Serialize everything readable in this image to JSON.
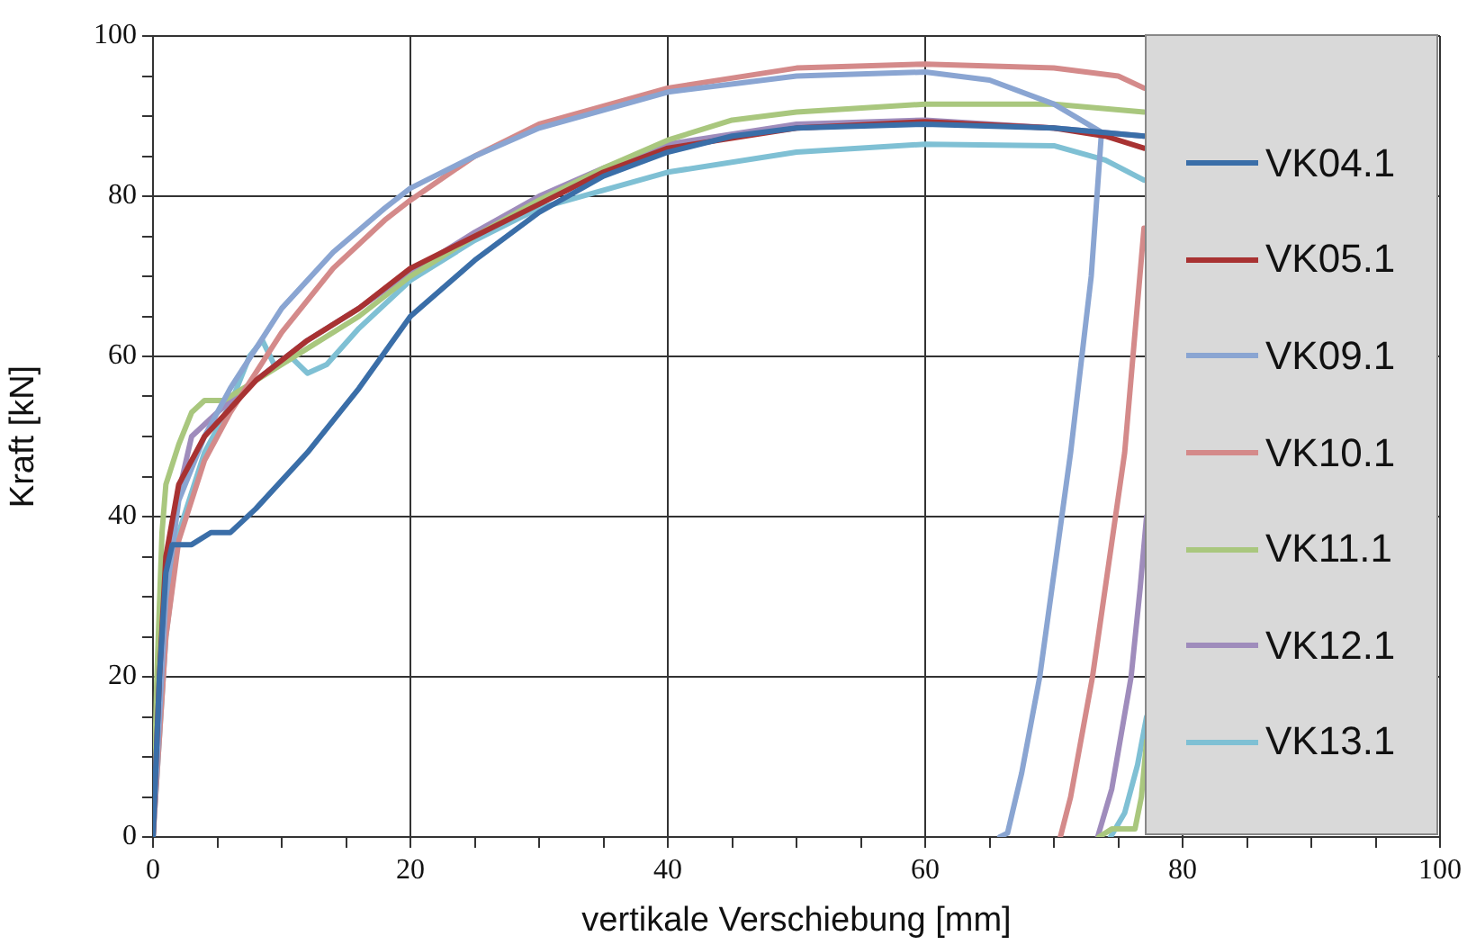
{
  "chart_data": {
    "type": "line",
    "xlabel": "vertikale Verschiebung [mm]",
    "ylabel": "Kraft [kN]",
    "xlim": [
      0,
      100
    ],
    "xticks": [
      0,
      {
        "value": 5,
        "label": null
      },
      {
        "value": 10,
        "label": null
      },
      {
        "value": 15,
        "label": null
      },
      20,
      {
        "value": 25,
        "label": null
      },
      {
        "value": 30,
        "label": null
      },
      {
        "value": 35,
        "label": null
      },
      40,
      {
        "value": 45,
        "label": null
      },
      {
        "value": 50,
        "label": null
      },
      {
        "value": 55,
        "label": null
      },
      60,
      {
        "value": 65,
        "label": null
      },
      {
        "value": 70,
        "label": null
      },
      {
        "value": 75,
        "label": null
      },
      80,
      {
        "value": 85,
        "label": null
      },
      {
        "value": 90,
        "label": null
      },
      {
        "value": 95,
        "label": null
      },
      100
    ],
    "ylim": [
      0,
      100
    ],
    "yticks": [
      0,
      {
        "value": 5,
        "label": null
      },
      {
        "value": 10,
        "label": null
      },
      {
        "value": 15,
        "label": null
      },
      20,
      {
        "value": 25,
        "label": null
      },
      {
        "value": 30,
        "label": null
      },
      {
        "value": 35,
        "label": null
      },
      40,
      {
        "value": 45,
        "label": null
      },
      {
        "value": 50,
        "label": null
      },
      {
        "value": 55,
        "label": null
      },
      60,
      {
        "value": 65,
        "label": null
      },
      {
        "value": 70,
        "label": null
      },
      {
        "value": 75,
        "label": null
      },
      80,
      {
        "value": 85,
        "label": null
      },
      {
        "value": 90,
        "label": null
      },
      {
        "value": 95,
        "label": null
      },
      100
    ],
    "grid": true,
    "legend": "right",
    "marker": "none",
    "line_style": "solid",
    "series": [
      {
        "name": "VK04.1",
        "color": "#3a6ea8",
        "x": [
          0,
          0.5,
          1,
          1.5,
          3,
          4.5,
          6,
          8,
          12,
          16,
          20,
          25,
          30,
          35,
          40,
          45,
          50,
          60,
          70,
          77
        ],
        "values": [
          0,
          20,
          33,
          36.5,
          36.5,
          38,
          38,
          41,
          48,
          56,
          65,
          72,
          78,
          82.5,
          85.5,
          87.5,
          88.5,
          89,
          88.5,
          87.5
        ]
      },
      {
        "name": "VK05.1",
        "color": "#a83232",
        "x": [
          0,
          0.5,
          1,
          2,
          4,
          8,
          12,
          16,
          20,
          25,
          30,
          35,
          40,
          50,
          60,
          70,
          74,
          77
        ],
        "values": [
          0,
          20,
          35,
          44,
          50,
          57,
          62,
          66,
          71,
          75,
          79,
          83,
          86,
          88.5,
          89.3,
          88.5,
          87.5,
          86
        ]
      },
      {
        "name": "VK09.1",
        "color": "#8aa5d2",
        "x": [
          0,
          1,
          2,
          4,
          6,
          8,
          10,
          14,
          18,
          20,
          25,
          30,
          40,
          50,
          60,
          65,
          70,
          73.7,
          72.9,
          71.3,
          68.9,
          67.5,
          66.4,
          65.8
        ],
        "values": [
          0,
          30,
          42,
          50,
          56,
          61,
          66,
          73,
          78.5,
          81,
          85,
          88.5,
          93,
          95,
          95.5,
          94.5,
          91.5,
          88,
          70,
          48,
          20,
          8,
          0.5,
          0
        ]
      },
      {
        "name": "VK10.1",
        "color": "#d48a8a",
        "x": [
          0,
          1,
          2,
          4,
          6,
          8,
          10,
          14,
          18,
          20,
          25,
          30,
          40,
          50,
          60,
          70,
          75,
          77
        ],
        "values": [
          0,
          25,
          37,
          47,
          53,
          58,
          63,
          71,
          77,
          79.5,
          85,
          89,
          93.5,
          96,
          96.5,
          96,
          95,
          93.5
        ]
      },
      {
        "color": "#d48a8a",
        "x": [
          77,
          75.5,
          73,
          71.3,
          70.5
        ],
        "values": [
          76,
          48,
          20,
          5,
          0
        ]
      },
      {
        "name": "VK11.1",
        "color": "#a9c77e",
        "x": [
          0,
          0.3,
          0.7,
          1,
          2,
          3,
          4,
          5.5,
          8,
          12,
          16,
          20,
          25,
          30,
          35,
          40,
          45,
          50,
          60,
          70,
          77
        ],
        "values": [
          0,
          20,
          38,
          44,
          49,
          53,
          54.5,
          54.5,
          57,
          61,
          65,
          70,
          75,
          79.5,
          83.5,
          87,
          89.5,
          90.5,
          91.5,
          91.5,
          90.5
        ]
      },
      {
        "color": "#a9c77e",
        "x": [
          77.2,
          76.8,
          76.3,
          74.5,
          73.5
        ],
        "values": [
          12,
          5,
          1,
          1,
          0
        ]
      },
      {
        "name": "VK12.1",
        "color": "#9f8cbc",
        "x": [
          0,
          1,
          2,
          3,
          5,
          8,
          12,
          16,
          20,
          25,
          30,
          35,
          40,
          50,
          60,
          70,
          77
        ],
        "values": [
          0,
          30,
          43,
          50,
          53,
          57,
          62,
          66,
          70.5,
          75.5,
          80,
          83.5,
          86.5,
          89,
          89.5,
          88.5,
          87.5
        ]
      },
      {
        "color": "#9f8cbc",
        "x": [
          77.2,
          76.7,
          76,
          74.5,
          73.4
        ],
        "values": [
          40,
          31,
          20,
          6,
          0
        ]
      },
      {
        "name": "VK13.1",
        "color": "#7fc0d4",
        "x": [
          0,
          1,
          2,
          4,
          6,
          7.5,
          8.5,
          9.5,
          10.8,
          12,
          13.5,
          16,
          20,
          25,
          30,
          40,
          50,
          60,
          70,
          74,
          77
        ],
        "values": [
          0,
          25,
          38,
          48,
          54,
          60,
          62,
          58.7,
          59.8,
          57.9,
          59,
          63.5,
          69.5,
          74.5,
          78.5,
          83,
          85.5,
          86.5,
          86.3,
          84.5,
          82
        ]
      },
      {
        "color": "#7fc0d4",
        "x": [
          77.2,
          76.5,
          75.5,
          74.4
        ],
        "values": [
          15,
          9,
          3,
          0
        ]
      }
    ]
  }
}
